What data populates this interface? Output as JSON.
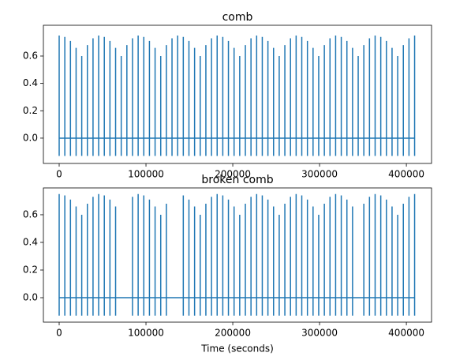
{
  "chart_data": [
    {
      "type": "spikes",
      "title": "comb",
      "color": "#1f77b4",
      "baseline": 0,
      "x": [
        0,
        6500,
        13000,
        19500,
        26000,
        32500,
        39000,
        45500,
        52000,
        58500,
        65000,
        71500,
        78000,
        84500,
        91000,
        97500,
        104000,
        110500,
        117000,
        123500,
        130000,
        136500,
        143000,
        149500,
        156000,
        162500,
        169000,
        175500,
        182000,
        188500,
        195000,
        201500,
        208000,
        214500,
        221000,
        227500,
        234000,
        240500,
        247000,
        253500,
        260000,
        266500,
        273000,
        279500,
        286000,
        292500,
        299000,
        305500,
        312000,
        318500,
        325000,
        331500,
        338000,
        344500,
        351000,
        357500,
        364000,
        370500,
        377000,
        383500,
        390000,
        396500,
        403000,
        409500
      ],
      "values": [
        0.75,
        0.74,
        0.71,
        0.66,
        0.6,
        0.68,
        0.73,
        0.75,
        0.74,
        0.71,
        0.66,
        0.6,
        0.68,
        0.73,
        0.75,
        0.74,
        0.71,
        0.66,
        0.6,
        0.68,
        0.73,
        0.75,
        0.74,
        0.71,
        0.66,
        0.6,
        0.68,
        0.73,
        0.75,
        0.74,
        0.71,
        0.66,
        0.6,
        0.68,
        0.73,
        0.75,
        0.74,
        0.71,
        0.66,
        0.6,
        0.68,
        0.73,
        0.75,
        0.74,
        0.71,
        0.66,
        0.6,
        0.68,
        0.73,
        0.75,
        0.74,
        0.71,
        0.66,
        0.6,
        0.68,
        0.73,
        0.75,
        0.74,
        0.71,
        0.66,
        0.6,
        0.68,
        0.73,
        0.75
      ],
      "lows": [
        -0.13,
        -0.13,
        -0.13,
        -0.13,
        -0.13,
        -0.13,
        -0.13,
        -0.13,
        -0.13,
        -0.13,
        -0.13,
        -0.13,
        -0.13,
        -0.13,
        -0.13,
        -0.13,
        -0.13,
        -0.13,
        -0.13,
        -0.13,
        -0.13,
        -0.13,
        -0.13,
        -0.13,
        -0.13,
        -0.13,
        -0.13,
        -0.13,
        -0.13,
        -0.13,
        -0.13,
        -0.13,
        -0.13,
        -0.13,
        -0.13,
        -0.13,
        -0.13,
        -0.13,
        -0.13,
        -0.13,
        -0.13,
        -0.13,
        -0.13,
        -0.13,
        -0.13,
        -0.13,
        -0.13,
        -0.13,
        -0.13,
        -0.13,
        -0.13,
        -0.13,
        -0.13,
        -0.13,
        -0.13,
        -0.13,
        -0.13,
        -0.13,
        -0.13,
        -0.13,
        -0.13,
        -0.13,
        -0.13,
        -0.13
      ],
      "xlim": [
        -18182,
        429000
      ],
      "ylim": [
        -0.185,
        0.825
      ],
      "xticks": [
        0,
        100000,
        200000,
        300000,
        400000
      ],
      "yticks": [
        {
          "value": 0,
          "label": "0.0"
        },
        {
          "value": 0.2,
          "label": "0.2"
        },
        {
          "value": 0.4,
          "label": "0.4"
        },
        {
          "value": 0.6,
          "label": "0.6"
        }
      ]
    },
    {
      "type": "spikes",
      "title": "broken comb",
      "xlabel": "Time (seconds)",
      "color": "#1f77b4",
      "baseline": 0,
      "x": [
        0,
        6500,
        13000,
        19500,
        26000,
        32500,
        39000,
        45500,
        52000,
        58500,
        65000,
        71500,
        78000,
        84500,
        91000,
        97500,
        104000,
        110500,
        117000,
        123500,
        130000,
        136500,
        143000,
        149500,
        156000,
        162500,
        169000,
        175500,
        182000,
        188500,
        195000,
        201500,
        208000,
        214500,
        221000,
        227500,
        234000,
        240500,
        247000,
        253500,
        260000,
        266500,
        273000,
        279500,
        286000,
        292500,
        299000,
        305500,
        312000,
        318500,
        325000,
        331500,
        338000,
        344500,
        351000,
        357500,
        364000,
        370500,
        377000,
        383500,
        390000,
        396500,
        403000,
        409500
      ],
      "values": [
        0.75,
        0.74,
        0.71,
        0.66,
        0.6,
        0.68,
        0.73,
        0.75,
        0.74,
        0.71,
        0.66,
        null,
        null,
        0.73,
        0.75,
        0.74,
        0.71,
        0.66,
        0.6,
        0.68,
        null,
        null,
        0.74,
        0.71,
        0.66,
        0.6,
        0.68,
        0.73,
        0.75,
        0.74,
        0.71,
        0.66,
        0.6,
        0.68,
        0.73,
        0.75,
        0.74,
        0.71,
        0.66,
        0.6,
        0.68,
        0.73,
        0.75,
        0.74,
        0.71,
        0.66,
        0.6,
        0.68,
        0.73,
        0.75,
        0.74,
        0.71,
        0.66,
        null,
        0.68,
        0.73,
        0.75,
        0.74,
        0.71,
        0.66,
        0.6,
        0.68,
        0.73,
        0.75
      ],
      "lows": [
        -0.13,
        -0.13,
        -0.13,
        -0.13,
        -0.13,
        -0.13,
        -0.13,
        -0.13,
        -0.13,
        -0.13,
        -0.13,
        null,
        null,
        -0.13,
        -0.13,
        -0.13,
        -0.13,
        -0.13,
        -0.13,
        -0.13,
        null,
        null,
        -0.13,
        -0.13,
        -0.13,
        -0.13,
        -0.13,
        -0.13,
        -0.13,
        -0.13,
        -0.13,
        -0.13,
        -0.13,
        -0.13,
        -0.13,
        -0.13,
        -0.13,
        -0.13,
        -0.13,
        -0.13,
        -0.13,
        -0.13,
        -0.13,
        -0.13,
        -0.13,
        -0.13,
        -0.13,
        -0.13,
        -0.13,
        -0.13,
        -0.13,
        -0.13,
        -0.13,
        null,
        -0.13,
        -0.13,
        -0.13,
        -0.13,
        -0.13,
        -0.13,
        -0.13,
        -0.13,
        -0.13,
        -0.13
      ],
      "xlim": [
        -18182,
        429000
      ],
      "ylim": [
        -0.177,
        0.794
      ],
      "xticks": [
        0,
        100000,
        200000,
        300000,
        400000
      ],
      "yticks": [
        {
          "value": 0,
          "label": "0.0"
        },
        {
          "value": 0.2,
          "label": "0.2"
        },
        {
          "value": 0.4,
          "label": "0.4"
        },
        {
          "value": 0.6,
          "label": "0.6"
        }
      ]
    }
  ]
}
